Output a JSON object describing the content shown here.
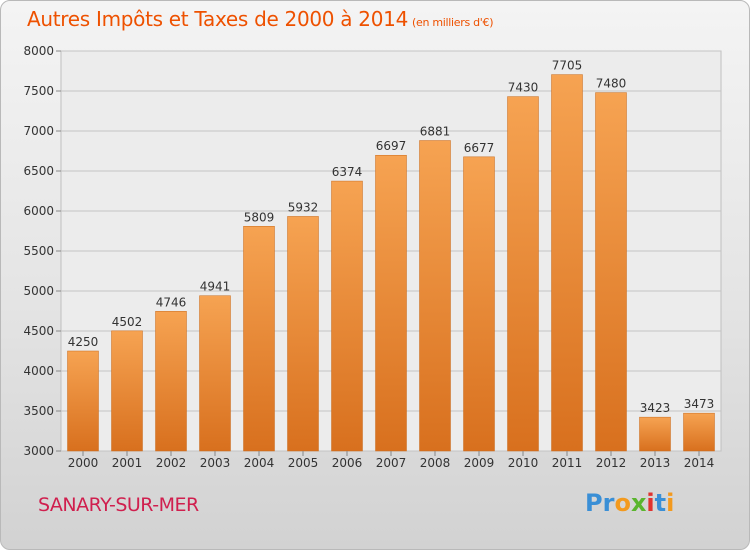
{
  "chart_data": {
    "type": "bar",
    "title": "Autres Impôts et Taxes de 2000 à 2014",
    "unit": "(en milliers d'€)",
    "categories": [
      "2000",
      "2001",
      "2002",
      "2003",
      "2004",
      "2005",
      "2006",
      "2007",
      "2008",
      "2009",
      "2010",
      "2011",
      "2012",
      "2013",
      "2014"
    ],
    "values": [
      4250,
      4502,
      4746,
      4941,
      5809,
      5932,
      6374,
      6697,
      6881,
      6677,
      7430,
      7705,
      7480,
      3423,
      3473
    ],
    "ylim": [
      3000,
      8000
    ],
    "yticks": [
      3000,
      3500,
      4000,
      4500,
      5000,
      5500,
      6000,
      6500,
      7000,
      7500,
      8000
    ],
    "grid": true,
    "bar_color": "#f0963d"
  },
  "footer": {
    "city": "SANARY-SUR-MER",
    "logo": [
      {
        "char": "P",
        "color": "#3a8fd6"
      },
      {
        "char": "r",
        "color": "#3a8fd6"
      },
      {
        "char": "o",
        "color": "#f39a1e"
      },
      {
        "char": "x",
        "color": "#5ab52e"
      },
      {
        "char": "i",
        "color": "#e0322f"
      },
      {
        "char": "t",
        "color": "#3a8fd6"
      },
      {
        "char": "i",
        "color": "#f39a1e"
      }
    ]
  }
}
